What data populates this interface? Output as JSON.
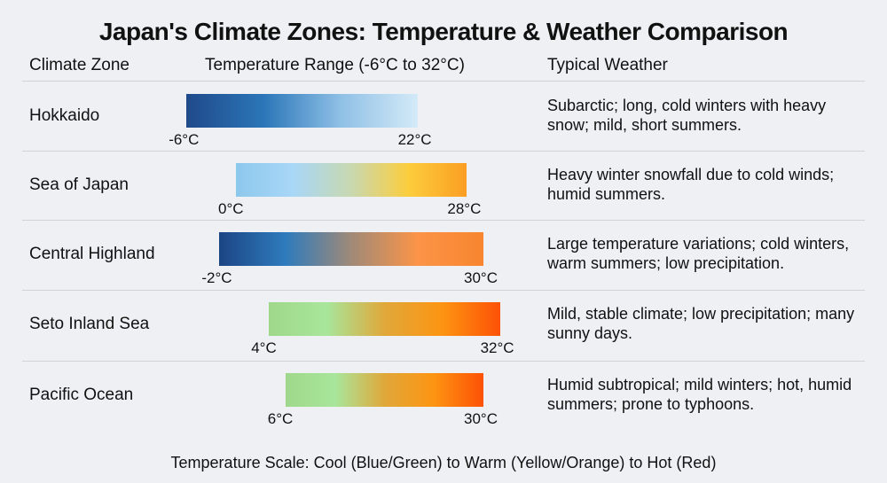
{
  "title": "Japan's Climate Zones: Temperature & Weather Comparison",
  "headers": {
    "zone": "Climate Zone",
    "range": "Temperature Range (-6°C to 32°C)",
    "weather": "Typical Weather"
  },
  "footer": "Temperature Scale: Cool (Blue/Green) to Warm (Yellow/Orange) to Hot (Red)",
  "chart_data": {
    "type": "bar",
    "orientation": "horizontal-range",
    "xlim": [
      -6,
      32
    ],
    "categories": [
      "Hokkaido",
      "Sea of Japan",
      "Central Highland",
      "Seto Inland Sea",
      "Pacific Ocean"
    ],
    "rows": [
      {
        "zone": "Hokkaido",
        "min": -6,
        "max": 22,
        "min_label": "-6°C",
        "max_label": "22°C",
        "gradient": [
          "#1f4a8a",
          "#2b76b8",
          "#8fc0e6",
          "#d4eaf8"
        ],
        "weather": "Subarctic; long, cold winters with heavy snow; mild, short summers."
      },
      {
        "zone": "Sea of Japan",
        "min": 0,
        "max": 28,
        "min_label": "0°C",
        "max_label": "28°C",
        "gradient": [
          "#8cc8ec",
          "#a9d7f7",
          "#c8d8b0",
          "#fccd3c",
          "#fb9e22"
        ],
        "weather": "Heavy winter snowfall due to cold winds; humid summers."
      },
      {
        "zone": "Central Highland",
        "min": -2,
        "max": 30,
        "min_label": "-2°C",
        "max_label": "30°C",
        "gradient": [
          "#1c4584",
          "#2e7bbd",
          "#a08a78",
          "#fb9448",
          "#f8852e"
        ],
        "weather": "Large temperature variations; cold winters, warm summers; low precipitation."
      },
      {
        "zone": "Seto Inland Sea",
        "min": 4,
        "max": 32,
        "min_label": "4°C",
        "max_label": "32°C",
        "gradient": [
          "#9fd88a",
          "#a8e69b",
          "#e0a83a",
          "#fd9412",
          "#fd5106"
        ],
        "weather": "Mild, stable climate; low precipitation; many sunny days."
      },
      {
        "zone": "Pacific Ocean",
        "min": 6,
        "max": 30,
        "min_label": "6°C",
        "max_label": "30°C",
        "gradient": [
          "#9fd88a",
          "#a8e69b",
          "#e0a83a",
          "#fd9412",
          "#fd5106"
        ],
        "weather": "Humid subtropical; mild winters; hot, humid summers; prone to typhoons."
      }
    ]
  }
}
